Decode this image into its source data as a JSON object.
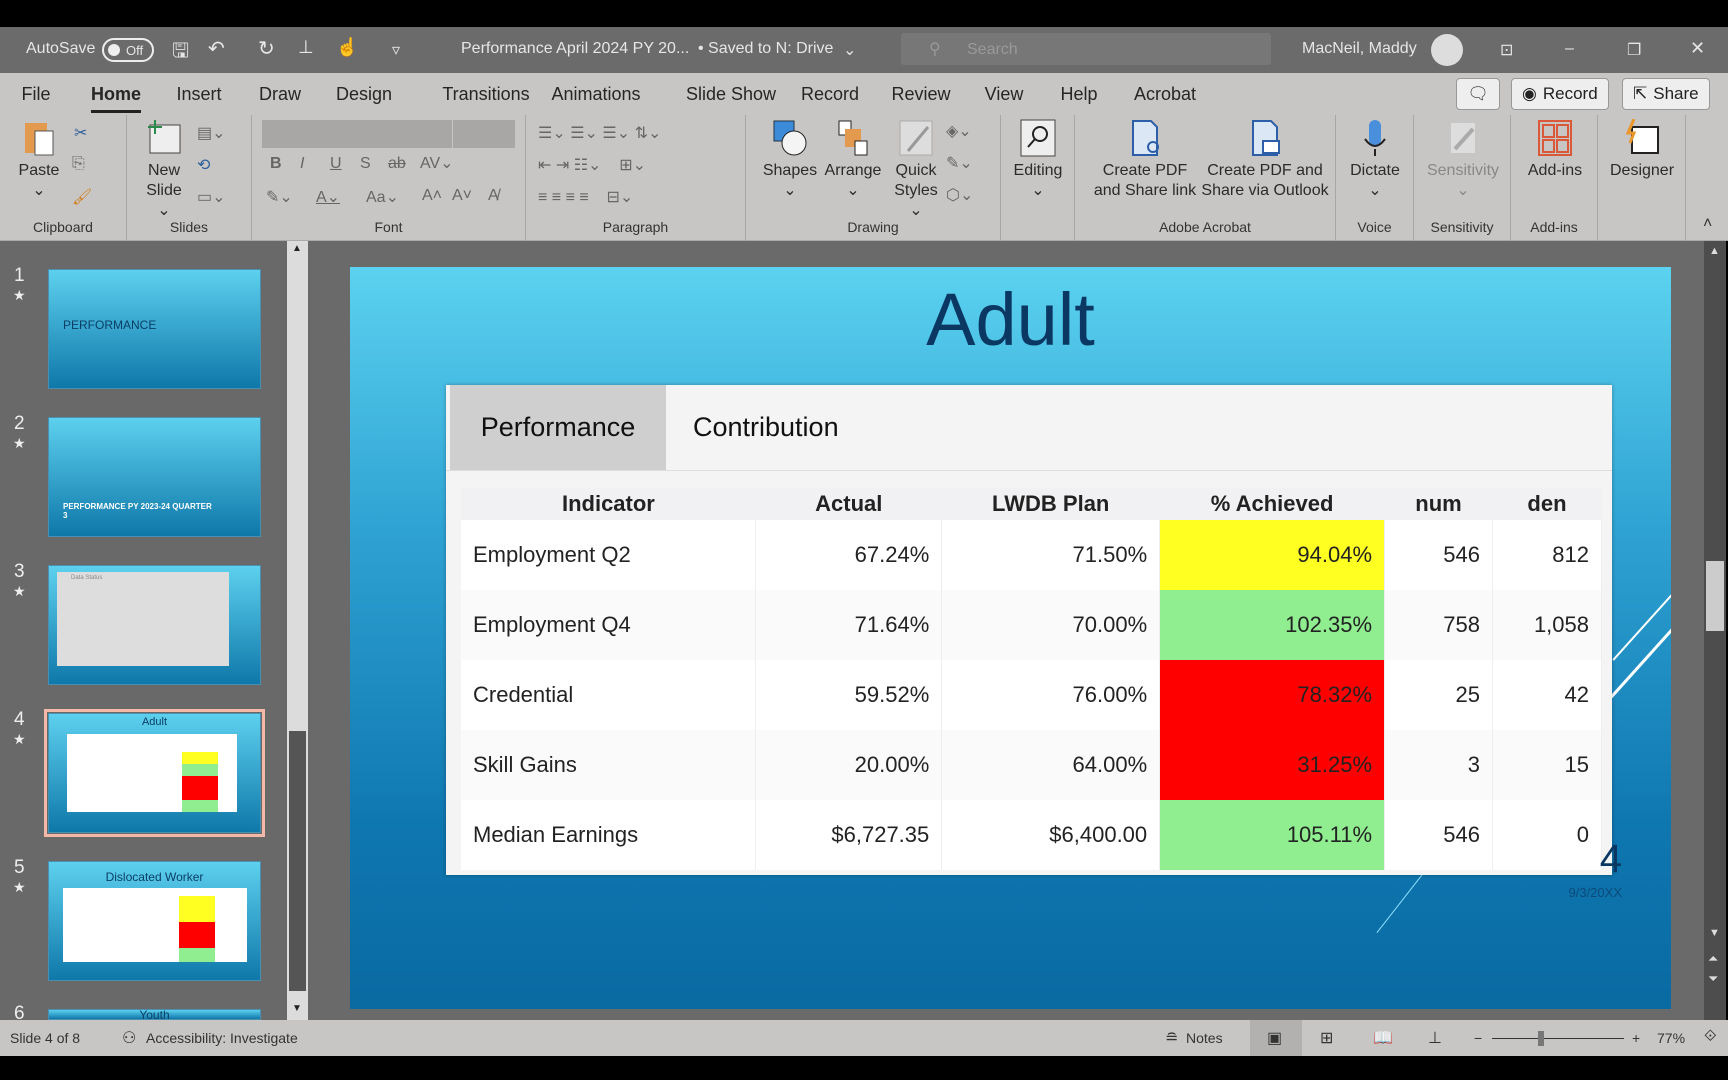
{
  "titlebar": {
    "autosave": "AutoSave",
    "autosave_state": "Off",
    "doc_title": "Performance April 2024 PY 20...",
    "save_status": "• Saved to N: Drive",
    "search_placeholder": "Search",
    "user": "MacNeil, Maddy"
  },
  "tabs": [
    "File",
    "Home",
    "Insert",
    "Draw",
    "Design",
    "Transitions",
    "Animations",
    "Slide Show",
    "Record",
    "Review",
    "View",
    "Help",
    "Acrobat"
  ],
  "active_tab": "Home",
  "tab_buttons": {
    "record": "Record",
    "share": "Share"
  },
  "ribbon": {
    "groups": [
      "Clipboard",
      "Slides",
      "Font",
      "Paragraph",
      "Drawing",
      "",
      "Adobe Acrobat",
      "Voice",
      "Sensitivity",
      "Add-ins",
      ""
    ],
    "paste": "Paste",
    "new_slide_1": "New",
    "new_slide_2": "Slide",
    "shapes": "Shapes",
    "arrange": "Arrange",
    "quick_styles_1": "Quick",
    "quick_styles_2": "Styles",
    "editing": "Editing",
    "create_pdf_link_1": "Create PDF",
    "create_pdf_link_2": "and Share link",
    "create_pdf_outlook_1": "Create PDF and",
    "create_pdf_outlook_2": "Share via Outlook",
    "dictate": "Dictate",
    "sensitivity": "Sensitivity",
    "addins": "Add-ins",
    "designer": "Designer"
  },
  "thumbnails": [
    {
      "num": "1",
      "title": "PERFORMANCE"
    },
    {
      "num": "2",
      "title": "PERFORMANCE PY 2023-24 QUARTER 3"
    },
    {
      "num": "3",
      "title": "Data Status"
    },
    {
      "num": "4",
      "title": "Adult"
    },
    {
      "num": "5",
      "title": "Dislocated Worker"
    },
    {
      "num": "6",
      "title": "Youth"
    }
  ],
  "slide": {
    "title": "Adult",
    "tabs": [
      "Performance",
      "Contribution"
    ],
    "columns": [
      "Indicator",
      "Actual",
      "LWDB Plan",
      "% Achieved",
      "num",
      "den"
    ],
    "rows": [
      {
        "indicator": "Employment Q2",
        "actual": "67.24%",
        "plan": "71.50%",
        "achieved": "94.04%",
        "num": "546",
        "den": "812",
        "status_color": "#ffff22"
      },
      {
        "indicator": "Employment Q4",
        "actual": "71.64%",
        "plan": "70.00%",
        "achieved": "102.35%",
        "num": "758",
        "den": "1,058",
        "status_color": "#90ee90"
      },
      {
        "indicator": "Credential",
        "actual": "59.52%",
        "plan": "76.00%",
        "achieved": "78.32%",
        "num": "25",
        "den": "42",
        "status_color": "#ff0000"
      },
      {
        "indicator": "Skill Gains",
        "actual": "20.00%",
        "plan": "64.00%",
        "achieved": "31.25%",
        "num": "3",
        "den": "15",
        "status_color": "#ff0000"
      },
      {
        "indicator": "Median Earnings",
        "actual": "$6,727.35",
        "plan": "$6,400.00",
        "achieved": "105.11%",
        "num": "546",
        "den": "0",
        "status_color": "#90ee90"
      }
    ],
    "slide_number": "4",
    "date": "9/3/20XX"
  },
  "status": {
    "slide_info": "Slide 4 of 8",
    "accessibility": "Accessibility: Investigate",
    "notes": "Notes",
    "zoom": "77%"
  }
}
